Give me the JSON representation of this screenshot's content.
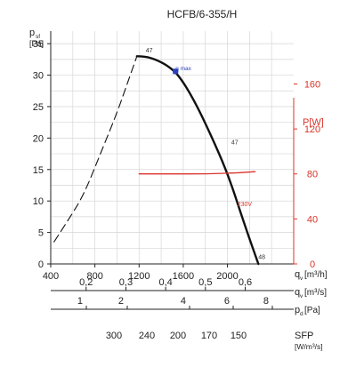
{
  "chart_data": {
    "type": "line",
    "title": "HCFB/6-355/H",
    "xlabel": "q",
    "xlabel_sub": "v",
    "xunit": "[m³/h]",
    "ylabel": "p",
    "ylabel_sub": "sf",
    "yunit": "[Pa]",
    "y2label": "P",
    "y2unit": "[W]",
    "xlim": [
      400,
      2600
    ],
    "ylim": [
      0,
      37
    ],
    "y2lim": [
      0,
      207
    ],
    "x_ticks": [
      "400",
      "800",
      "1200",
      "1600",
      "2000"
    ],
    "y_ticks": [
      "0",
      "5",
      "10",
      "15",
      "20",
      "25",
      "30",
      "35"
    ],
    "y2_ticks": [
      "0",
      "40",
      "80",
      "120",
      "160"
    ],
    "grid": true,
    "series": [
      {
        "name": "",
        "style": "dashed",
        "axis": "left",
        "x": [
          430,
          560,
          700,
          850,
          1000,
          1120,
          1180
        ],
        "y": [
          3.5,
          7,
          11,
          17.5,
          24,
          30,
          33
        ]
      },
      {
        "name": "",
        "style": "solid",
        "axis": "left",
        "x": [
          1180,
          1250,
          1350,
          1460,
          1560,
          1700,
          1850,
          2000,
          2150,
          2280
        ],
        "y": [
          33,
          33,
          32.5,
          31.5,
          30,
          26,
          20.5,
          14.5,
          6.5,
          0
        ]
      },
      {
        "name": "",
        "style": "solid",
        "axis": "right",
        "x": [
          1200,
          1500,
          1800,
          2100,
          2250
        ],
        "y": [
          80,
          80,
          80,
          81,
          82
        ]
      }
    ],
    "annotations": [
      {
        "text": "47",
        "x": 1260,
        "y": 33.6
      },
      {
        "text": "η max",
        "x": 1530,
        "y": 30.8
      },
      {
        "text": "47",
        "x": 2035,
        "y": 19
      },
      {
        "text": "230V",
        "x": 2090,
        "y": 9.2
      },
      {
        "text": "48",
        "x": 2280,
        "y": 0.8
      }
    ],
    "marker": {
      "x": 1530,
      "y": 30.6
    },
    "secondary_scales": [
      {
        "label": "q",
        "label_sub": "v",
        "unit": "[m³/s]",
        "ticks": [
          "0,2",
          "0,3",
          "0,4",
          "0,5",
          "0,6"
        ],
        "values": [
          0.2,
          0.3,
          0.4,
          0.5,
          0.6
        ]
      },
      {
        "label": "p",
        "label_sub": "d",
        "unit": "[Pa]",
        "ticks": [
          "1",
          "2",
          "4",
          "6",
          "8"
        ],
        "values": [
          1,
          2,
          4,
          6,
          8
        ]
      },
      {
        "label": "SFP",
        "label_sub": "",
        "unit": "[W/m³/s]",
        "ticks": [
          "300",
          "240",
          "200",
          "170",
          "150"
        ],
        "values": [
          300,
          240,
          200,
          170,
          150
        ]
      }
    ]
  }
}
